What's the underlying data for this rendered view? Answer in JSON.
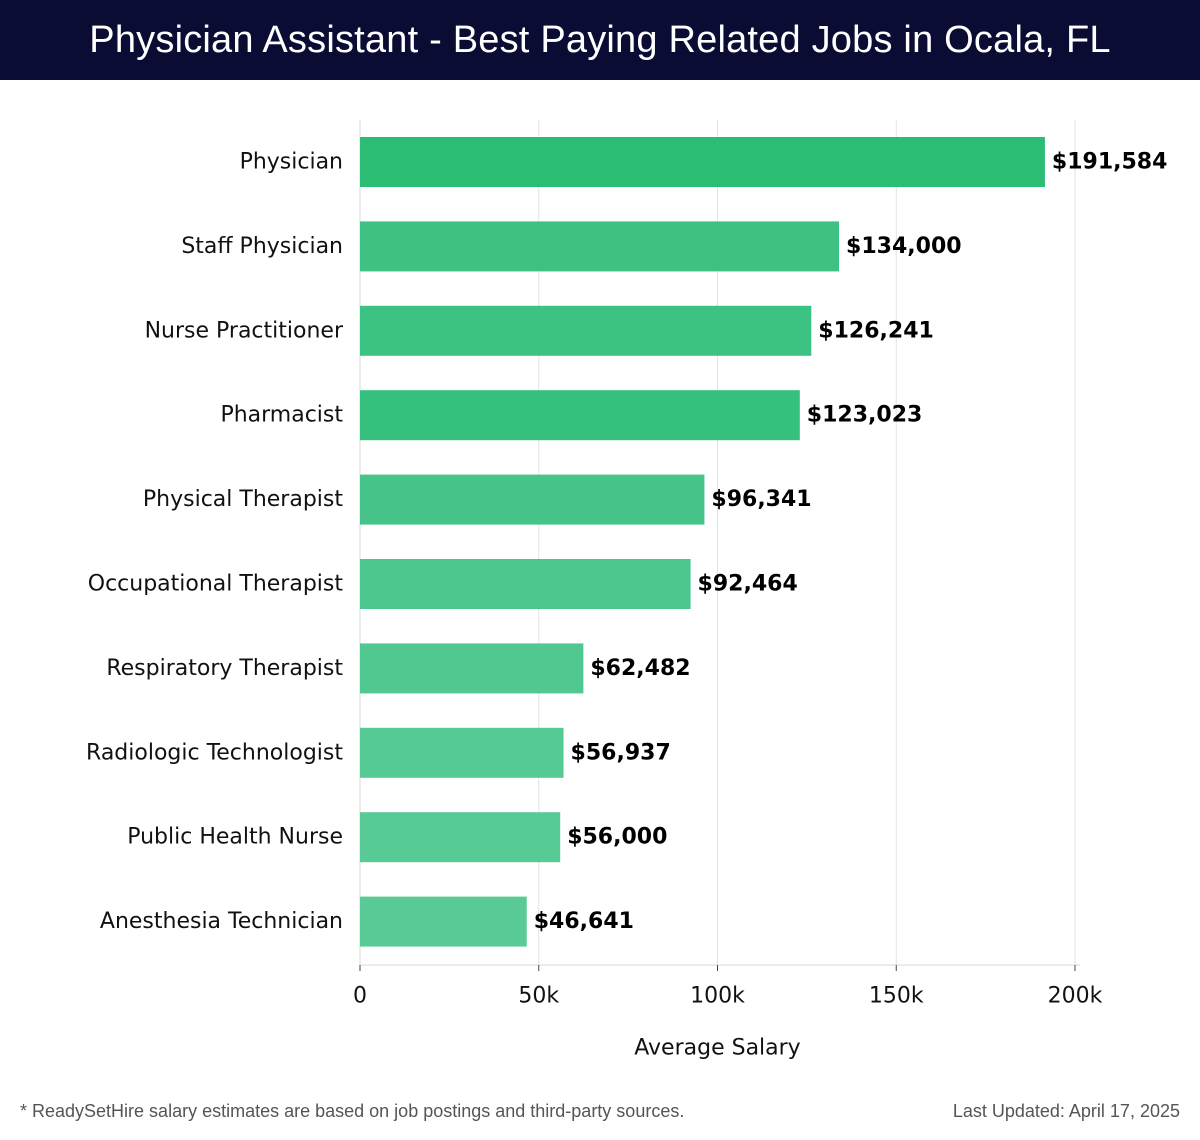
{
  "header": {
    "title": "Physician Assistant - Best Paying Related Jobs in Ocala, FL"
  },
  "chart_data": {
    "type": "bar",
    "orientation": "horizontal",
    "title": "Physician Assistant - Best Paying Related Jobs in Ocala, FL",
    "xlabel": "Average Salary",
    "ylabel": "",
    "xlim": [
      0,
      200000
    ],
    "grid": true,
    "categories": [
      "Physician",
      "Staff Physician",
      "Nurse Practitioner",
      "Pharmacist",
      "Physical Therapist",
      "Occupational Therapist",
      "Respiratory Therapist",
      "Radiologic Technologist",
      "Public Health Nurse",
      "Anesthesia Technician"
    ],
    "values": [
      191584,
      134000,
      126241,
      123023,
      96341,
      92464,
      62482,
      56937,
      56000,
      46641
    ],
    "value_labels": [
      "$191,584",
      "$134,000",
      "$126,241",
      "$123,023",
      "$96,341",
      "$92,464",
      "$62,482",
      "$56,937",
      "$56,000",
      "$46,641"
    ],
    "x_ticks": [
      0,
      50000,
      100000,
      150000,
      200000
    ],
    "x_tick_labels": [
      "0",
      "50k",
      "100k",
      "150k",
      "200k"
    ],
    "bar_colors": [
      "#2bbd74",
      "#3ec284",
      "#3cc283",
      "#36c07e",
      "#46c48a",
      "#4bc68c",
      "#50c890",
      "#55ca95",
      "#57ca96",
      "#5acb97"
    ]
  },
  "footer": {
    "note": "* ReadySetHire salary estimates are based on job postings and third-party sources.",
    "updated": "Last Updated: April 17, 2025"
  }
}
